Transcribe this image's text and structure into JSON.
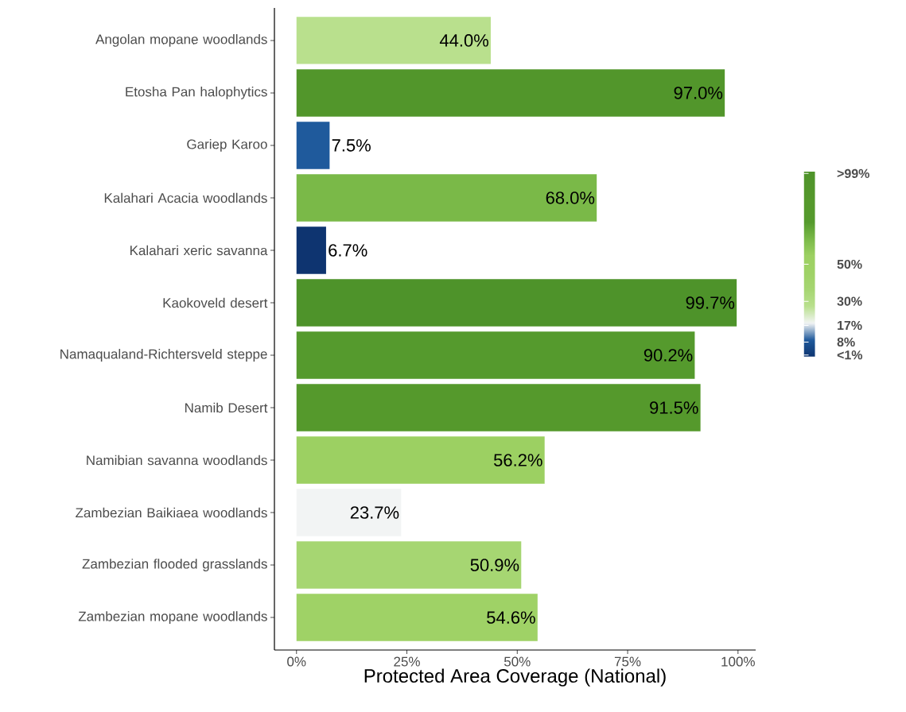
{
  "chart_data": {
    "type": "bar",
    "orientation": "horizontal",
    "xlabel": "Protected Area Coverage (National)",
    "categories": [
      "Angolan mopane woodlands",
      "Etosha Pan halophytics",
      "Gariep Karoo",
      "Kalahari Acacia woodlands",
      "Kalahari xeric savanna",
      "Kaokoveld desert",
      "Namaqualand-Richtersveld steppe",
      "Namib Desert",
      "Namibian savanna woodlands",
      "Zambezian Baikiaea woodlands",
      "Zambezian flooded grasslands",
      "Zambezian mopane woodlands"
    ],
    "values": [
      44.0,
      97.0,
      7.5,
      68.0,
      6.7,
      99.7,
      90.2,
      91.5,
      56.2,
      23.7,
      50.9,
      54.6
    ],
    "value_labels": [
      "44.0%",
      "97.0%",
      "7.5%",
      "68.0%",
      "6.7%",
      "99.7%",
      "90.2%",
      "91.5%",
      "56.2%",
      "23.7%",
      "50.9%",
      "54.6%"
    ],
    "colors": [
      "#b9e08d",
      "#52962b",
      "#1f5a9c",
      "#7ab948",
      "#0e3470",
      "#4e932a",
      "#559a2d",
      "#55992c",
      "#9cd062",
      "#f2f4f4",
      "#a6d672",
      "#9fd266"
    ],
    "xlim": [
      -5,
      104
    ],
    "xticks": [
      {
        "value": 0,
        "label": "0%"
      },
      {
        "value": 25,
        "label": "25%"
      },
      {
        "value": 50,
        "label": "50%"
      },
      {
        "value": 75,
        "label": "75%"
      },
      {
        "value": 100,
        "label": "100%"
      }
    ],
    "clim": [
      0,
      100
    ],
    "cticks": [
      {
        "value": 1,
        "label": "<1%"
      },
      {
        "value": 8,
        "label": "8%"
      },
      {
        "value": 17,
        "label": "17%"
      },
      {
        "value": 30,
        "label": "30%"
      },
      {
        "value": 50,
        "label": "50%"
      },
      {
        "value": 99,
        "label": ">99%"
      }
    ],
    "grid": false
  }
}
